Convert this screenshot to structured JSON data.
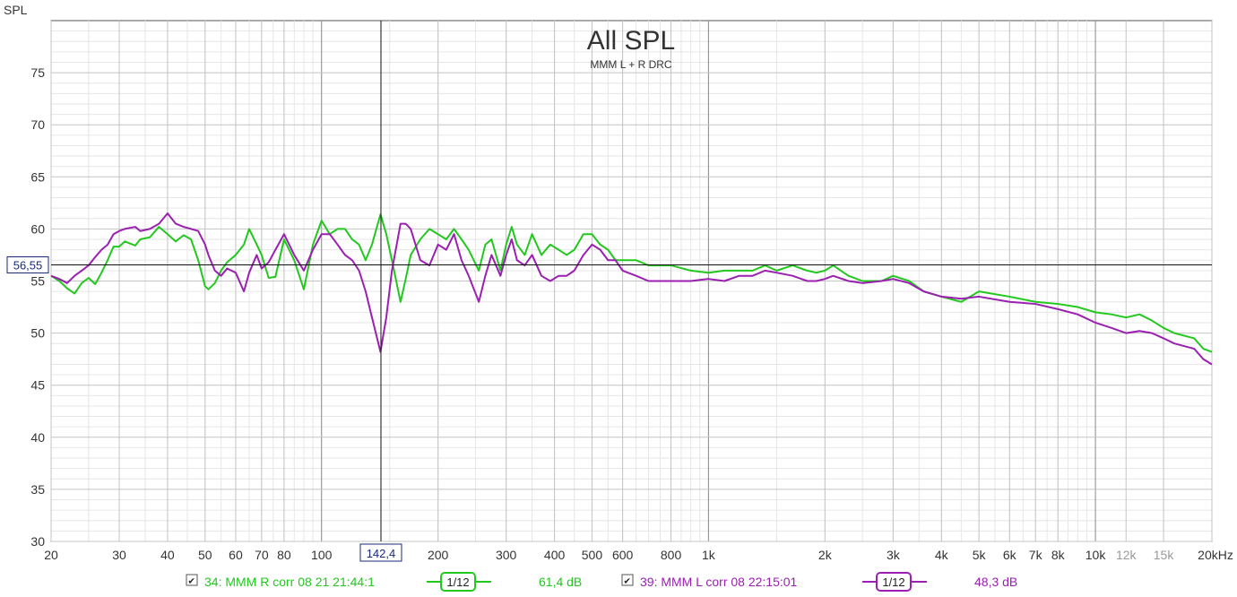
{
  "chart_data": {
    "type": "line",
    "title": "All SPL",
    "subtitle": "MMM L + R DRC",
    "ylabel": "SPL",
    "x_scale": "log",
    "xlim": [
      20,
      20000
    ],
    "ylim": [
      30,
      80
    ],
    "grid": true,
    "x_ticks": [
      {
        "value": 20,
        "label": "20",
        "dim": false
      },
      {
        "value": 30,
        "label": "30",
        "dim": false
      },
      {
        "value": 40,
        "label": "40",
        "dim": false
      },
      {
        "value": 50,
        "label": "50",
        "dim": false
      },
      {
        "value": 60,
        "label": "60",
        "dim": false
      },
      {
        "value": 70,
        "label": "70",
        "dim": false
      },
      {
        "value": 80,
        "label": "80",
        "dim": false
      },
      {
        "value": 100,
        "label": "100",
        "dim": false
      },
      {
        "value": 200,
        "label": "200",
        "dim": false
      },
      {
        "value": 300,
        "label": "300",
        "dim": false
      },
      {
        "value": 400,
        "label": "400",
        "dim": false
      },
      {
        "value": 500,
        "label": "500",
        "dim": false
      },
      {
        "value": 600,
        "label": "600",
        "dim": false
      },
      {
        "value": 800,
        "label": "800",
        "dim": false
      },
      {
        "value": 1000,
        "label": "1k",
        "dim": false
      },
      {
        "value": 2000,
        "label": "2k",
        "dim": false
      },
      {
        "value": 3000,
        "label": "3k",
        "dim": false
      },
      {
        "value": 4000,
        "label": "4k",
        "dim": false
      },
      {
        "value": 5000,
        "label": "5k",
        "dim": false
      },
      {
        "value": 6000,
        "label": "6k",
        "dim": false
      },
      {
        "value": 7000,
        "label": "7k",
        "dim": false
      },
      {
        "value": 8000,
        "label": "8k",
        "dim": false
      },
      {
        "value": 10000,
        "label": "10k",
        "dim": false
      },
      {
        "value": 12000,
        "label": "12k",
        "dim": true
      },
      {
        "value": 15000,
        "label": "15k",
        "dim": true
      },
      {
        "value": 20000,
        "label": "20kHz",
        "dim": false
      }
    ],
    "y_ticks": [
      30,
      35,
      40,
      45,
      50,
      55,
      60,
      65,
      70,
      75
    ],
    "cursor": {
      "x": 142.4,
      "x_label": "142,4",
      "y": 56.55,
      "y_label": "56,55"
    },
    "series": [
      {
        "name": "34: MMM R corr 08 21 21:44:1",
        "color": "#22c81e",
        "smoothing": "1/12",
        "cursor_value": "61,4 dB",
        "x": [
          20,
          21,
          22,
          23,
          24,
          25,
          26,
          27,
          28,
          29,
          30,
          31,
          33,
          34,
          36,
          38,
          40,
          42,
          44,
          46,
          48,
          50,
          51,
          53,
          55,
          57,
          60,
          63,
          65,
          68,
          70,
          73,
          76,
          80,
          85,
          90,
          95,
          100,
          105,
          110,
          115,
          120,
          125,
          130,
          135,
          142,
          147,
          152,
          160,
          165,
          170,
          180,
          190,
          200,
          210,
          220,
          230,
          240,
          255,
          265,
          275,
          290,
          300,
          310,
          320,
          335,
          350,
          370,
          390,
          410,
          430,
          450,
          475,
          500,
          525,
          550,
          575,
          600,
          650,
          700,
          750,
          800,
          900,
          1000,
          1100,
          1200,
          1300,
          1400,
          1500,
          1650,
          1800,
          1900,
          2000,
          2100,
          2300,
          2500,
          2800,
          3000,
          3300,
          3600,
          4000,
          4500,
          5000,
          6000,
          7000,
          8000,
          9000,
          10000,
          11000,
          12000,
          13000,
          14000,
          15000,
          16000,
          18000,
          19000,
          20000
        ],
        "y": [
          55.5,
          55.0,
          54.3,
          53.8,
          54.8,
          55.3,
          54.7,
          55.8,
          57.0,
          58.3,
          58.3,
          58.8,
          58.4,
          59.0,
          59.2,
          60.2,
          59.5,
          58.8,
          59.4,
          59.0,
          57.0,
          54.5,
          54.2,
          54.8,
          56.0,
          56.8,
          57.5,
          58.5,
          60.0,
          58.5,
          57.5,
          55.3,
          55.4,
          59.0,
          57.0,
          54.2,
          58.5,
          60.8,
          59.5,
          60.0,
          60.0,
          59.0,
          58.5,
          57.0,
          58.5,
          61.4,
          59.5,
          57.0,
          53.0,
          55.2,
          57.5,
          59.0,
          60.0,
          59.5,
          59.0,
          60.0,
          59.0,
          58.0,
          56.0,
          58.5,
          59.0,
          56.0,
          58.5,
          60.2,
          58.5,
          57.5,
          59.5,
          57.5,
          58.5,
          58.0,
          57.5,
          58.0,
          59.5,
          59.5,
          58.5,
          58.0,
          57.0,
          57.0,
          57.0,
          56.5,
          56.5,
          56.5,
          56.0,
          55.8,
          56.0,
          56.0,
          56.0,
          56.5,
          56.0,
          56.5,
          56.0,
          55.8,
          56.0,
          56.5,
          55.5,
          55.0,
          55.0,
          55.5,
          55.0,
          54.0,
          53.5,
          53.0,
          54.0,
          53.5,
          53.0,
          52.8,
          52.5,
          52.0,
          51.8,
          51.5,
          51.8,
          51.2,
          50.5,
          50.0,
          49.5,
          48.5,
          48.2
        ]
      },
      {
        "name": "39: MMM L corr 08 22:15:01",
        "color": "#9b1fb1",
        "smoothing": "1/12",
        "cursor_value": "48,3 dB",
        "x": [
          20,
          21,
          22,
          23,
          24,
          25,
          26,
          27,
          28,
          29,
          30,
          31,
          33,
          34,
          36,
          38,
          40,
          42,
          44,
          46,
          48,
          50,
          51,
          53,
          55,
          57,
          60,
          63,
          65,
          68,
          70,
          73,
          76,
          80,
          85,
          90,
          95,
          100,
          105,
          110,
          115,
          120,
          125,
          130,
          135,
          142,
          147,
          152,
          160,
          165,
          170,
          180,
          190,
          200,
          210,
          220,
          230,
          240,
          255,
          265,
          275,
          290,
          300,
          310,
          320,
          335,
          350,
          370,
          390,
          410,
          430,
          450,
          475,
          500,
          525,
          550,
          575,
          600,
          650,
          700,
          750,
          800,
          900,
          1000,
          1100,
          1200,
          1300,
          1400,
          1500,
          1650,
          1800,
          1900,
          2000,
          2100,
          2300,
          2500,
          2800,
          3000,
          3300,
          3600,
          4000,
          4500,
          5000,
          6000,
          7000,
          8000,
          9000,
          10000,
          11000,
          12000,
          13000,
          14000,
          15000,
          16000,
          18000,
          19000,
          20000
        ],
        "y": [
          55.5,
          55.2,
          54.8,
          55.5,
          56.0,
          56.5,
          57.3,
          58.0,
          58.5,
          59.5,
          59.8,
          60.0,
          60.2,
          59.8,
          60.0,
          60.5,
          61.5,
          60.5,
          60.2,
          60.0,
          59.8,
          58.5,
          57.5,
          56.0,
          55.5,
          56.2,
          55.8,
          54.0,
          55.8,
          57.5,
          56.2,
          56.8,
          58.0,
          59.5,
          57.5,
          56.0,
          58.0,
          59.5,
          59.5,
          58.5,
          57.5,
          57.0,
          56.0,
          54.0,
          51.5,
          48.2,
          51.5,
          56.0,
          60.5,
          60.5,
          60.0,
          57.0,
          56.5,
          58.5,
          58.0,
          59.5,
          57.0,
          55.5,
          53.0,
          55.5,
          57.5,
          55.5,
          57.5,
          59.0,
          57.0,
          56.5,
          57.5,
          55.5,
          55.0,
          55.5,
          55.5,
          56.0,
          57.5,
          58.5,
          58.0,
          57.0,
          57.0,
          56.0,
          55.5,
          55.0,
          55.0,
          55.0,
          55.0,
          55.2,
          55.0,
          55.5,
          55.5,
          56.0,
          55.8,
          55.5,
          55.0,
          55.0,
          55.2,
          55.5,
          55.0,
          54.8,
          55.0,
          55.2,
          54.8,
          54.0,
          53.5,
          53.3,
          53.5,
          53.0,
          52.8,
          52.3,
          51.8,
          51.0,
          50.5,
          50.0,
          50.2,
          50.0,
          49.5,
          49.0,
          48.5,
          47.5,
          47.0
        ]
      }
    ]
  }
}
